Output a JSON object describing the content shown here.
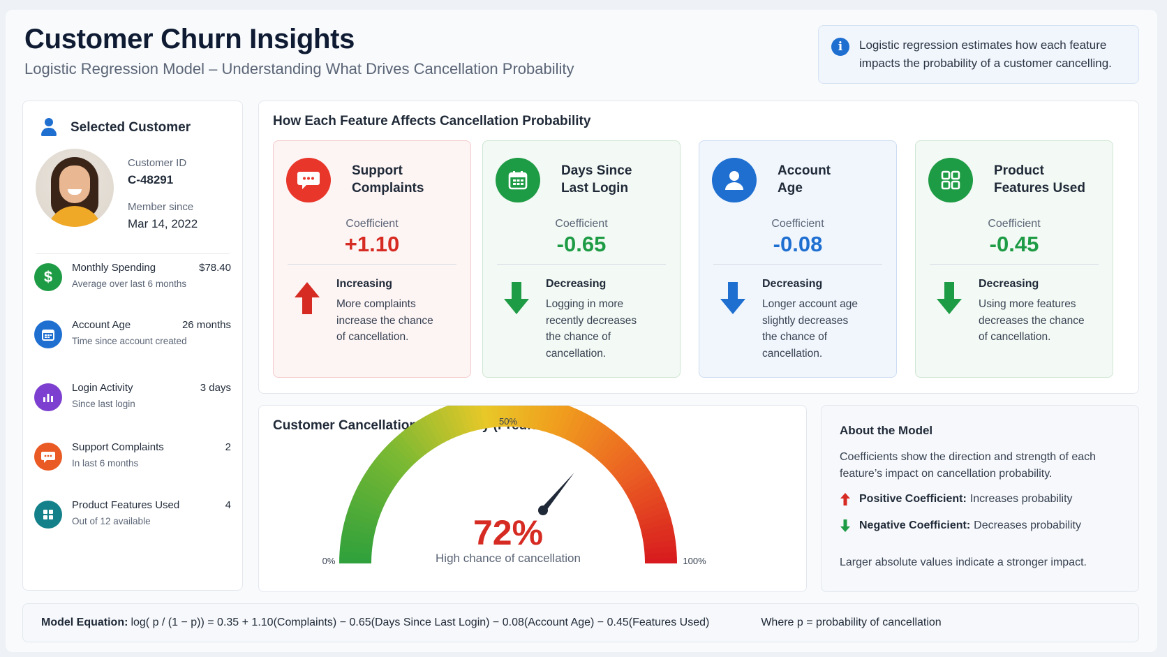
{
  "header": {
    "title": "Customer Churn Insights",
    "subtitle": "Logistic Regression Model – Understanding What Drives Cancellation Probability",
    "info_text_line1": "Logistic regression estimates how each feature",
    "info_text_line2": "impacts the probability of a customer cancelling.",
    "info_icon": "info-icon"
  },
  "customer": {
    "heading": "Selected Customer",
    "id_label": "Customer ID",
    "id_value": "C-48291",
    "since_label": "Member since",
    "since_value": "Mar 14, 2022",
    "metrics": [
      {
        "label": "Monthly Spending",
        "sub": "Average over last 6 months",
        "value": "$78.40",
        "icon": "dollar-icon",
        "color": "#1e9b45"
      },
      {
        "label": "Account Age",
        "sub": "Time since account created",
        "value": "26 months",
        "icon": "calendar-icon",
        "color": "#1f6fd1"
      },
      {
        "label": "Login Activity",
        "sub": "Since last login",
        "value": "3 days",
        "icon": "bar-chart-icon",
        "color": "#7c3fcf"
      },
      {
        "label": "Support Complaints",
        "sub": "In last 6 months",
        "value": "2",
        "icon": "chat-icon",
        "color": "#ea5a24"
      },
      {
        "label": "Product Features Used",
        "sub": "Out of 12 available",
        "value": "4",
        "icon": "grid-icon",
        "color": "#14808a"
      }
    ]
  },
  "features": {
    "title": "How Each Feature Affects Cancellation Probability",
    "coef_label": "Coefficient",
    "cards": [
      {
        "name_line1": "Support",
        "name_line2": "Complaints",
        "coefficient": "+1.10",
        "direction": "Increasing",
        "desc": [
          "More complaints",
          "increase the chance",
          "of cancellation."
        ],
        "theme": "red",
        "icon": "chat-icon",
        "color": "#e8362a"
      },
      {
        "name_line1": "Days Since",
        "name_line2": "Last Login",
        "coefficient": "-0.65",
        "direction": "Decreasing",
        "desc": [
          "Logging in more",
          "recently decreases",
          "the chance of",
          "cancellation."
        ],
        "theme": "green",
        "icon": "calendar-icon",
        "color": "#1e9b45"
      },
      {
        "name_line1": "Account",
        "name_line2": "Age",
        "coefficient": "-0.08",
        "direction": "Decreasing",
        "desc": [
          "Longer account age",
          "slightly decreases",
          "the chance of",
          "cancellation."
        ],
        "theme": "blue",
        "icon": "person-icon",
        "color": "#1f6fd1"
      },
      {
        "name_line1": "Product",
        "name_line2": "Features Used",
        "coefficient": "-0.45",
        "direction": "Decreasing",
        "desc": [
          "Using more features",
          "decreases the chance",
          "of cancellation."
        ],
        "theme": "green",
        "icon": "grid-icon",
        "color": "#1e9b45"
      }
    ]
  },
  "gauge": {
    "title": "Customer Cancellation Probability (Predicted)",
    "value_text": "72%",
    "value": 72,
    "caption": "High chance of cancellation",
    "min_label": "0%",
    "mid_label": "50%",
    "max_label": "100%"
  },
  "about": {
    "title": "About the Model",
    "desc_line1": "Coefficients show the direction and strength of each",
    "desc_line2": "feature’s impact on cancellation probability.",
    "positive_label": "Positive Coefficient:",
    "positive_text": "Increases probability",
    "negative_label": "Negative Coefficient:",
    "negative_text": "Decreases probability",
    "footer": "Larger absolute values indicate a stronger impact."
  },
  "equation": {
    "label": "Model Equation:",
    "text": "log( p / (1 − p)) = 0.35 + 1.10(Complaints) − 0.65(Days Since Last Login) − 0.08(Account Age) − 0.45(Features Used)",
    "where": "Where p = probability of cancellation"
  }
}
